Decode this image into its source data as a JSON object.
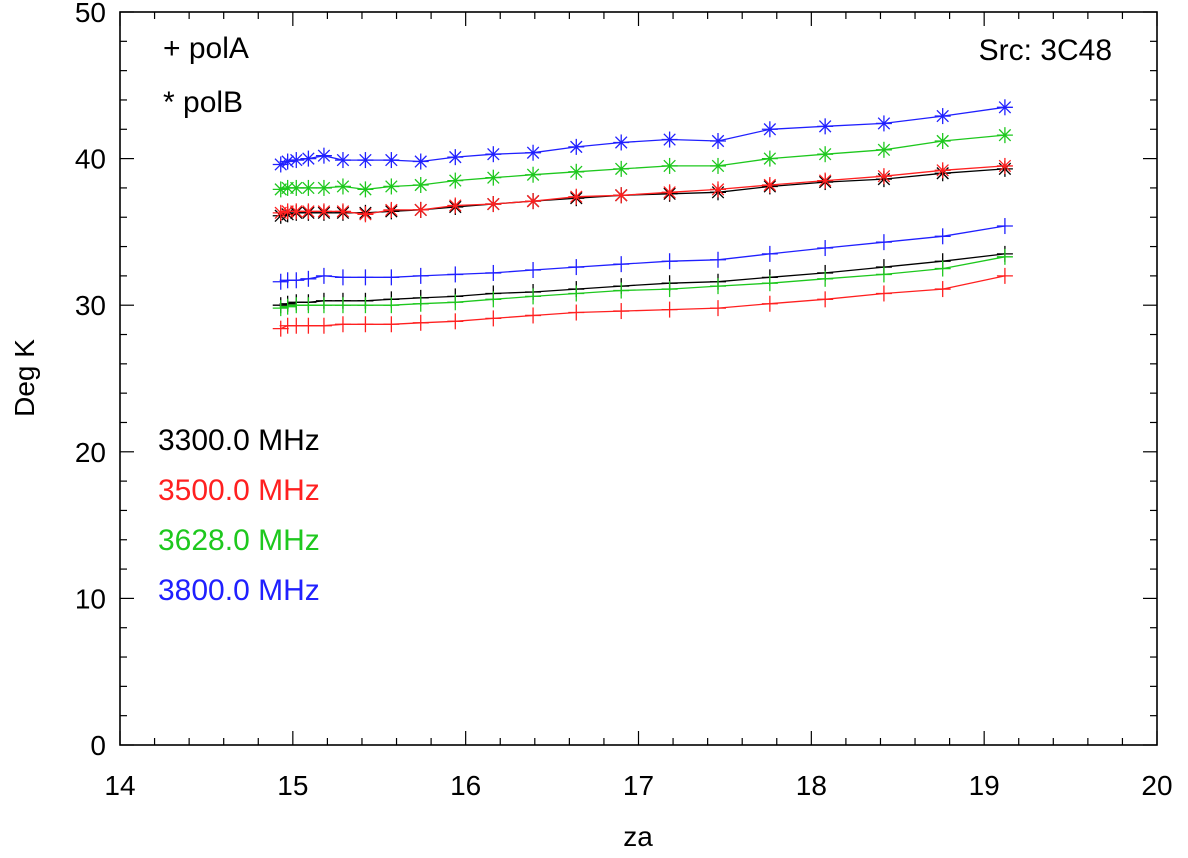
{
  "chart_data": {
    "type": "line",
    "xlabel": "za",
    "ylabel": "Deg K",
    "xlim": [
      14,
      20
    ],
    "ylim": [
      0,
      50
    ],
    "x_ticks": [
      "14",
      "15",
      "16",
      "17",
      "18",
      "19",
      "20"
    ],
    "y_ticks": [
      "0",
      "10",
      "20",
      "30",
      "40",
      "50"
    ],
    "grid": false,
    "annotations": {
      "source": "Src: 3C48",
      "marker_legend": [
        "+ polA",
        "* polB"
      ]
    },
    "za": [
      14.93,
      14.97,
      15.02,
      15.09,
      15.18,
      15.29,
      15.42,
      15.57,
      15.74,
      15.94,
      16.16,
      16.39,
      16.64,
      16.9,
      17.18,
      17.46,
      17.76,
      18.08,
      18.42,
      18.76,
      19.12
    ],
    "series": [
      {
        "name": "3300.0 MHz",
        "color": "#000000",
        "polA": [
          30.0,
          30.1,
          30.2,
          30.2,
          30.3,
          30.3,
          30.3,
          30.4,
          30.5,
          30.6,
          30.8,
          30.9,
          31.1,
          31.3,
          31.5,
          31.6,
          31.9,
          32.2,
          32.6,
          33.0,
          33.5
        ],
        "polB": [
          36.1,
          36.2,
          36.3,
          36.3,
          36.3,
          36.3,
          36.3,
          36.4,
          36.5,
          36.7,
          36.9,
          37.1,
          37.3,
          37.5,
          37.6,
          37.7,
          38.1,
          38.4,
          38.6,
          39.0,
          39.3
        ]
      },
      {
        "name": "3500.0 MHz",
        "color": "#ff2020",
        "polA": [
          28.4,
          28.6,
          28.6,
          28.6,
          28.6,
          28.7,
          28.7,
          28.7,
          28.8,
          28.9,
          29.1,
          29.3,
          29.5,
          29.6,
          29.7,
          29.8,
          30.1,
          30.4,
          30.8,
          31.1,
          32.0
        ],
        "polB": [
          36.3,
          36.4,
          36.4,
          36.4,
          36.4,
          36.4,
          36.2,
          36.5,
          36.5,
          36.8,
          36.9,
          37.1,
          37.4,
          37.5,
          37.7,
          37.9,
          38.2,
          38.5,
          38.8,
          39.2,
          39.5
        ]
      },
      {
        "name": "3628.0 MHz",
        "color": "#1ec81e",
        "polA": [
          29.8,
          29.9,
          30.0,
          30.0,
          30.0,
          30.0,
          30.0,
          30.0,
          30.1,
          30.2,
          30.4,
          30.6,
          30.8,
          31.0,
          31.1,
          31.3,
          31.5,
          31.8,
          32.1,
          32.5,
          33.3
        ],
        "polB": [
          37.9,
          38.0,
          38.0,
          38.0,
          38.0,
          38.1,
          37.9,
          38.1,
          38.2,
          38.5,
          38.7,
          38.9,
          39.1,
          39.3,
          39.5,
          39.5,
          40.0,
          40.3,
          40.6,
          41.2,
          41.6
        ]
      },
      {
        "name": "3800.0 MHz",
        "color": "#2020ff",
        "polA": [
          31.6,
          31.7,
          31.7,
          31.8,
          32.0,
          31.9,
          31.9,
          31.9,
          32.0,
          32.1,
          32.2,
          32.4,
          32.6,
          32.8,
          33.0,
          33.1,
          33.5,
          33.9,
          34.3,
          34.7,
          35.4
        ],
        "polB": [
          39.6,
          39.8,
          39.9,
          40.0,
          40.2,
          39.9,
          39.9,
          39.9,
          39.8,
          40.1,
          40.3,
          40.4,
          40.8,
          41.1,
          41.3,
          41.2,
          42.0,
          42.2,
          42.4,
          42.9,
          43.5
        ]
      }
    ]
  }
}
